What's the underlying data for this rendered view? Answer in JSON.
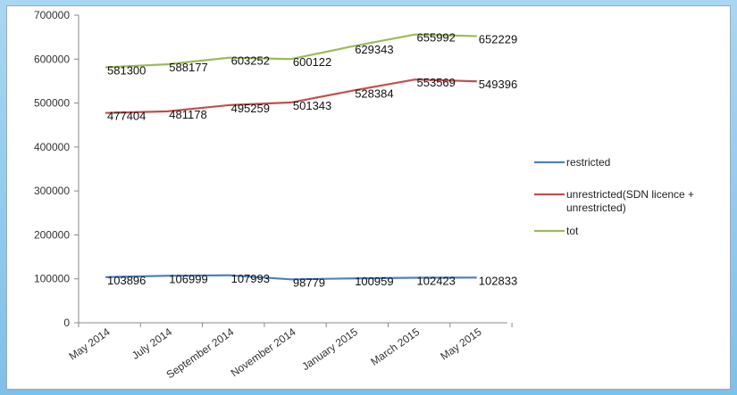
{
  "chart_data": {
    "type": "line",
    "categories": [
      "May 2014",
      "Jul 2014",
      "Sep 2014",
      "Nov 2014",
      "Jan 2015",
      "Mar 2015",
      "May 2015"
    ],
    "x_tick_labels": [
      "May 2014",
      "July 2014",
      "September 2014",
      "November 2014",
      "January 2015",
      "March 2015",
      "May 2015"
    ],
    "ylim": [
      0,
      700000
    ],
    "y_ticks": [
      0,
      100000,
      200000,
      300000,
      400000,
      500000,
      600000,
      700000
    ],
    "y_tick_labels": [
      "0",
      "100000",
      "200000",
      "300000",
      "400000",
      "500000",
      "600000",
      "700000"
    ],
    "grid": false,
    "legend_placement": "right",
    "series": [
      {
        "name": "restricted",
        "color": "#4f81bd",
        "values": [
          103896,
          106999,
          107993,
          98779,
          100959,
          102423,
          102833
        ],
        "labels": [
          "103896",
          "106999",
          "107993",
          "98779",
          "100959",
          "102423",
          "102833"
        ]
      },
      {
        "name": "unrestricted(SDN licence + unrestricted)",
        "legend_lines": [
          "unrestricted(SDN licence +",
          "unrestricted)"
        ],
        "color": "#c0504d",
        "values": [
          477404,
          481178,
          495259,
          501343,
          528384,
          553569,
          549396
        ],
        "labels": [
          "477404",
          "481178",
          "495259",
          "501343",
          "528384",
          "553569",
          "549396"
        ]
      },
      {
        "name": "tot",
        "color": "#9bbb59",
        "values": [
          581300,
          588177,
          603252,
          600122,
          629343,
          655992,
          652229
        ],
        "labels": [
          "581300",
          "588177",
          "603252",
          "600122",
          "629343",
          "655992",
          "652229"
        ]
      }
    ]
  }
}
